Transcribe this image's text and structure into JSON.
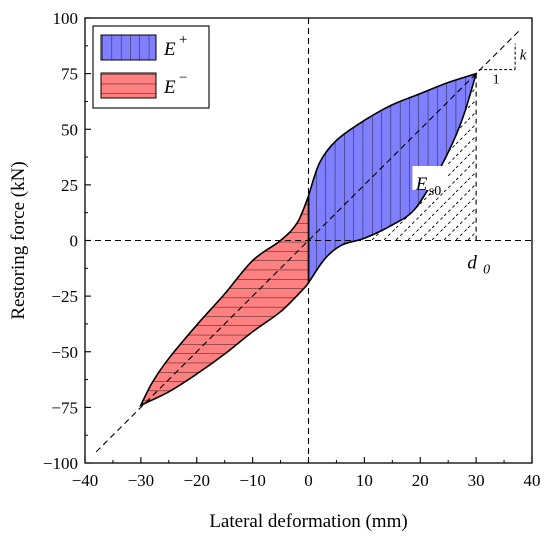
{
  "chart_data": {
    "type": "area",
    "xlabel": "Lateral deformation (mm)",
    "ylabel": "Restoring force (kN)",
    "xlim": [
      -40,
      40
    ],
    "ylim": [
      -100,
      100
    ],
    "x_ticks": [
      -40,
      -30,
      -20,
      -10,
      0,
      10,
      20,
      30,
      40
    ],
    "y_ticks": [
      -100,
      -75,
      -50,
      -25,
      0,
      25,
      50,
      75,
      100
    ],
    "grid": false,
    "legend_position": "top-left",
    "legend": [
      {
        "main": "E",
        "sup": "+",
        "color": "#8080ff",
        "hatch": "vertical"
      },
      {
        "main": "E",
        "sup": "−",
        "color": "#ff8080",
        "hatch": "horizontal"
      }
    ],
    "series": [
      {
        "name": "E+",
        "color": "#8080ff",
        "upper": [
          [
            0,
            20
          ],
          [
            2,
            35
          ],
          [
            5,
            45
          ],
          [
            10,
            54
          ],
          [
            15,
            61
          ],
          [
            20,
            66
          ],
          [
            25,
            71
          ],
          [
            30,
            75
          ]
        ],
        "lower": [
          [
            0,
            -19
          ],
          [
            3,
            -8
          ],
          [
            6,
            -2
          ],
          [
            10,
            1
          ],
          [
            15,
            7
          ],
          [
            19,
            14
          ],
          [
            23,
            30
          ],
          [
            26,
            45
          ],
          [
            28,
            58
          ],
          [
            30,
            75
          ]
        ]
      },
      {
        "name": "E−",
        "color": "#ff8080",
        "upper": [
          [
            -30,
            -74
          ],
          [
            -28,
            -64
          ],
          [
            -25,
            -53
          ],
          [
            -20,
            -38
          ],
          [
            -15,
            -24
          ],
          [
            -10,
            -9
          ],
          [
            -5,
            0
          ],
          [
            -2,
            8
          ],
          [
            0,
            20
          ]
        ],
        "lower": [
          [
            -30,
            -74
          ],
          [
            -25,
            -68
          ],
          [
            -20,
            -60
          ],
          [
            -15,
            -51
          ],
          [
            -10,
            -41
          ],
          [
            -5,
            -32
          ],
          [
            -1,
            -22
          ],
          [
            0,
            -19
          ]
        ]
      }
    ],
    "diagonal_line": {
      "slope_kN_per_mm": 2.5,
      "x_range": [
        -38,
        38
      ]
    },
    "annotations": {
      "d_main": "d",
      "d_sub": "0",
      "es_main": "E",
      "es_sub": "s0",
      "k_label": "k",
      "slope_run": "1"
    }
  }
}
